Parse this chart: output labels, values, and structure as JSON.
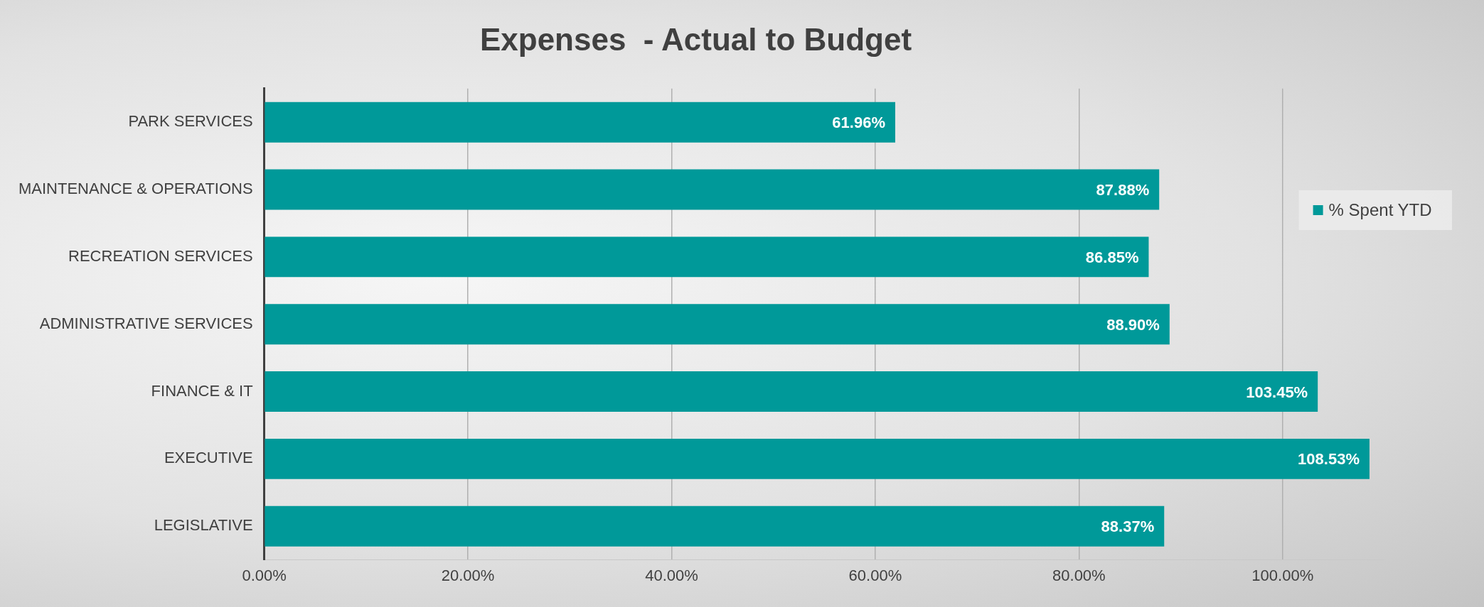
{
  "chart_data": {
    "type": "bar",
    "orientation": "horizontal",
    "title": "Expenses  - Actual to Budget",
    "categories": [
      "PARK SERVICES",
      "MAINTENANCE & OPERATIONS",
      "RECREATION SERVICES",
      "ADMINISTRATIVE SERVICES",
      "FINANCE & IT",
      "EXECUTIVE",
      "LEGISLATIVE"
    ],
    "series": [
      {
        "name": "% Spent YTD",
        "color": "#009999",
        "values": [
          61.96,
          87.88,
          86.85,
          88.9,
          103.45,
          108.53,
          88.37
        ],
        "value_labels": [
          "61.96%",
          "87.88%",
          "86.85%",
          "88.90%",
          "103.45%",
          "108.53%",
          "88.37%"
        ]
      }
    ],
    "xlim": [
      0,
      110
    ],
    "xticks": [
      {
        "value": 0,
        "label": "0.00%"
      },
      {
        "value": 20,
        "label": "20.00%"
      },
      {
        "value": 40,
        "label": "40.00%"
      },
      {
        "value": 60,
        "label": "60.00%"
      },
      {
        "value": 80,
        "label": "80.00%"
      },
      {
        "value": 100,
        "label": "100.00%"
      }
    ],
    "grid": "x",
    "legend": "right"
  }
}
